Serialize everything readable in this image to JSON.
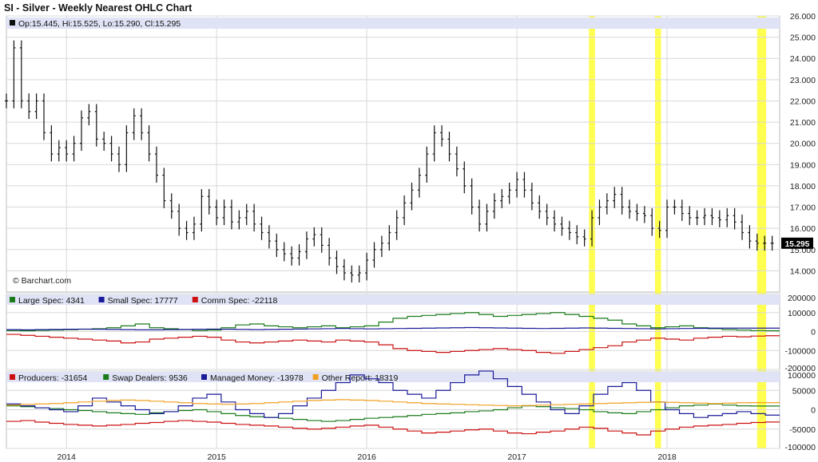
{
  "title": "SI - Silver - Weekly Nearest OHLC Chart",
  "copyright": "© Barchart.com",
  "colors": {
    "header_bg": "#dfe3f5",
    "grid": "#d8d8d8",
    "highlight": "#ffff33",
    "bar": "#111111",
    "large_spec": "#1a7a1a",
    "small_spec": "#1a1a99",
    "comm_spec": "#cc1111",
    "producers": "#cc1111",
    "swap_dealers": "#1a7a1a",
    "managed_money": "#1a1a99",
    "other_report": "#f0a020"
  },
  "chart_data": [
    {
      "type": "ohlc",
      "title": "SI - Silver - Weekly Nearest OHLC Chart",
      "legend": "Op:15.445, Hi:15.525, Lo:15.290, Cl:15.295",
      "last_price_label": "15.295",
      "ylim": [
        13.0,
        26.0
      ],
      "y_ticks": [
        "26.000",
        "25.000",
        "24.000",
        "23.000",
        "22.000",
        "21.000",
        "20.000",
        "19.000",
        "18.000",
        "17.000",
        "16.000",
        "15.000",
        "14.000"
      ],
      "x_ticks": [
        "2014",
        "2015",
        "2016",
        "2017",
        "2018"
      ],
      "x_range": [
        2013.6,
        2018.75
      ],
      "highlight_periods": [
        [
          2017.48,
          2017.52
        ],
        [
          2017.92,
          2017.96
        ],
        [
          2018.6,
          2018.66
        ]
      ],
      "series": [
        {
          "name": "Close",
          "x": [
            2013.6,
            2013.65,
            2013.7,
            2013.75,
            2013.8,
            2013.85,
            2013.9,
            2013.95,
            2014.0,
            2014.05,
            2014.1,
            2014.15,
            2014.2,
            2014.25,
            2014.3,
            2014.35,
            2014.4,
            2014.45,
            2014.5,
            2014.55,
            2014.6,
            2014.65,
            2014.7,
            2014.75,
            2014.8,
            2014.85,
            2014.9,
            2014.95,
            2015.0,
            2015.05,
            2015.1,
            2015.15,
            2015.2,
            2015.25,
            2015.3,
            2015.35,
            2015.4,
            2015.45,
            2015.5,
            2015.55,
            2015.6,
            2015.65,
            2015.7,
            2015.75,
            2015.8,
            2015.85,
            2015.9,
            2015.95,
            2016.0,
            2016.05,
            2016.1,
            2016.15,
            2016.2,
            2016.25,
            2016.3,
            2016.35,
            2016.4,
            2016.45,
            2016.5,
            2016.55,
            2016.6,
            2016.65,
            2016.7,
            2016.75,
            2016.8,
            2016.85,
            2016.9,
            2016.95,
            2017.0,
            2017.05,
            2017.1,
            2017.15,
            2017.2,
            2017.25,
            2017.3,
            2017.35,
            2017.4,
            2017.45,
            2017.5,
            2017.55,
            2017.6,
            2017.65,
            2017.7,
            2017.75,
            2017.8,
            2017.85,
            2017.9,
            2017.95,
            2018.0,
            2018.05,
            2018.1,
            2018.15,
            2018.2,
            2018.25,
            2018.3,
            2018.35,
            2018.4,
            2018.45,
            2018.5,
            2018.55,
            2018.6,
            2018.65,
            2018.7
          ],
          "values": [
            22.0,
            24.5,
            22.0,
            21.5,
            22.0,
            20.5,
            19.5,
            19.8,
            19.5,
            20.0,
            21.2,
            21.5,
            20.2,
            20.0,
            19.5,
            19.0,
            20.5,
            21.3,
            20.5,
            19.5,
            18.5,
            17.3,
            16.8,
            16.0,
            15.8,
            16.2,
            17.5,
            17.0,
            16.5,
            17.0,
            16.3,
            16.5,
            16.8,
            16.2,
            15.8,
            15.4,
            15.0,
            14.8,
            14.6,
            14.9,
            15.5,
            15.7,
            15.2,
            14.6,
            14.2,
            13.9,
            13.8,
            13.9,
            14.5,
            15.0,
            15.3,
            15.8,
            16.5,
            17.2,
            17.8,
            18.5,
            19.5,
            20.5,
            20.2,
            19.5,
            18.8,
            18.0,
            17.0,
            16.2,
            16.8,
            17.3,
            17.5,
            17.8,
            18.3,
            17.8,
            17.2,
            16.8,
            16.5,
            16.2,
            16.0,
            15.8,
            15.6,
            15.5,
            16.5,
            17.0,
            17.3,
            17.6,
            17.0,
            16.8,
            16.7,
            16.6,
            16.0,
            15.9,
            17.0,
            17.0,
            16.7,
            16.5,
            16.5,
            16.6,
            16.5,
            16.4,
            16.6,
            16.3,
            15.8,
            15.4,
            15.3,
            15.3,
            15.3
          ]
        }
      ]
    },
    {
      "type": "step-line",
      "ylim": [
        -200000,
        200000
      ],
      "y_ticks": [
        "200000",
        "100000",
        "0",
        "-100000",
        "-200000"
      ],
      "legend": [
        {
          "label": "Large Spec: 4341",
          "color": "#1a7a1a"
        },
        {
          "label": "Small Spec: 17777",
          "color": "#1a1a99"
        },
        {
          "label": "Comm Spec: -22118",
          "color": "#cc1111"
        }
      ],
      "series": [
        {
          "name": "Large Spec",
          "color": "#1a7a1a",
          "values": [
            5000,
            4000,
            6000,
            8000,
            10000,
            12000,
            15000,
            20000,
            30000,
            40000,
            20000,
            15000,
            10000,
            5000,
            8000,
            20000,
            35000,
            40000,
            30000,
            25000,
            20000,
            25000,
            30000,
            20000,
            25000,
            30000,
            50000,
            70000,
            80000,
            85000,
            90000,
            95000,
            100000,
            90000,
            80000,
            85000,
            90000,
            95000,
            100000,
            90000,
            80000,
            70000,
            60000,
            40000,
            30000,
            20000,
            25000,
            30000,
            20000,
            15000,
            10000,
            8000,
            5000,
            4341
          ]
        },
        {
          "name": "Small Spec",
          "color": "#1a1a99",
          "values": [
            10000,
            9000,
            10000,
            11000,
            12000,
            13000,
            12000,
            11000,
            10000,
            9000,
            9000,
            10000,
            11000,
            12000,
            13000,
            12000,
            11000,
            10000,
            11000,
            12000,
            13000,
            14000,
            15000,
            16000,
            15000,
            14000,
            15000,
            16000,
            17000,
            18000,
            19000,
            20000,
            21000,
            20000,
            19000,
            18000,
            17000,
            16000,
            17000,
            18000,
            19000,
            18000,
            17000,
            16000,
            15000,
            14000,
            15000,
            16000,
            17000,
            18000,
            18000,
            17777,
            17777,
            17777
          ]
        },
        {
          "name": "Comm Spec",
          "color": "#cc1111",
          "values": [
            -15000,
            -20000,
            -25000,
            -30000,
            -35000,
            -40000,
            -45000,
            -50000,
            -60000,
            -55000,
            -40000,
            -35000,
            -30000,
            -25000,
            -30000,
            -45000,
            -55000,
            -60000,
            -55000,
            -50000,
            -45000,
            -50000,
            -55000,
            -45000,
            -50000,
            -55000,
            -70000,
            -90000,
            -100000,
            -105000,
            -110000,
            -105000,
            -100000,
            -95000,
            -90000,
            -95000,
            -100000,
            -110000,
            -115000,
            -105000,
            -95000,
            -85000,
            -75000,
            -55000,
            -45000,
            -35000,
            -40000,
            -45000,
            -35000,
            -30000,
            -25000,
            -28000,
            -24000,
            -22118
          ]
        }
      ]
    },
    {
      "type": "step-line",
      "ylim": [
        -100000,
        100000
      ],
      "y_ticks": [
        "100000",
        "50000",
        "0",
        "-50000",
        "-100000"
      ],
      "legend": [
        {
          "label": "Producers: -31654",
          "color": "#cc1111"
        },
        {
          "label": "Swap Dealers: 9536",
          "color": "#1a7a1a"
        },
        {
          "label": "Managed Money: -13978",
          "color": "#1a1a99"
        },
        {
          "label": "Other Report: 18319",
          "color": "#f0a020"
        }
      ],
      "series": [
        {
          "name": "Producers",
          "color": "#cc1111",
          "values": [
            -30000,
            -28000,
            -32000,
            -35000,
            -38000,
            -40000,
            -42000,
            -40000,
            -38000,
            -35000,
            -33000,
            -30000,
            -28000,
            -30000,
            -32000,
            -35000,
            -38000,
            -40000,
            -42000,
            -45000,
            -48000,
            -50000,
            -48000,
            -45000,
            -42000,
            -40000,
            -45000,
            -50000,
            -55000,
            -60000,
            -58000,
            -55000,
            -52000,
            -50000,
            -55000,
            -60000,
            -62000,
            -58000,
            -55000,
            -50000,
            -45000,
            -48000,
            -55000,
            -60000,
            -65000,
            -55000,
            -50000,
            -45000,
            -42000,
            -40000,
            -38000,
            -35000,
            -33000,
            -31654
          ]
        },
        {
          "name": "Swap Dealers",
          "color": "#1a7a1a",
          "values": [
            10000,
            8000,
            5000,
            3000,
            0,
            -2000,
            -5000,
            -8000,
            -10000,
            -12000,
            -8000,
            -5000,
            -2000,
            0,
            -5000,
            -10000,
            -15000,
            -18000,
            -20000,
            -22000,
            -25000,
            -28000,
            -30000,
            -28000,
            -25000,
            -22000,
            -20000,
            -18000,
            -15000,
            -12000,
            -10000,
            -8000,
            -5000,
            -3000,
            0,
            5000,
            10000,
            8000,
            5000,
            3000,
            0,
            -5000,
            -8000,
            -10000,
            -5000,
            0,
            5000,
            10000,
            12000,
            15000,
            12000,
            10000,
            9536,
            9536
          ]
        },
        {
          "name": "Managed Money",
          "color": "#1a1a99",
          "values": [
            15000,
            10000,
            5000,
            0,
            -5000,
            10000,
            30000,
            20000,
            10000,
            0,
            -10000,
            -5000,
            10000,
            30000,
            40000,
            20000,
            0,
            -10000,
            -20000,
            -10000,
            10000,
            30000,
            50000,
            70000,
            90000,
            80000,
            70000,
            50000,
            40000,
            30000,
            50000,
            70000,
            90000,
            100000,
            80000,
            60000,
            40000,
            20000,
            0,
            -10000,
            10000,
            40000,
            60000,
            70000,
            50000,
            20000,
            0,
            -10000,
            -20000,
            -15000,
            -10000,
            -5000,
            -10000,
            -13978
          ]
        },
        {
          "name": "Other Report",
          "color": "#f0a020",
          "values": [
            12000,
            14000,
            15000,
            16000,
            18000,
            20000,
            22000,
            24000,
            25000,
            24000,
            22000,
            20000,
            18000,
            16000,
            15000,
            14000,
            15000,
            16000,
            18000,
            20000,
            22000,
            24000,
            25000,
            26000,
            25000,
            24000,
            22000,
            20000,
            18000,
            16000,
            15000,
            14000,
            13000,
            12000,
            11000,
            10000,
            11000,
            12000,
            13000,
            14000,
            15000,
            16000,
            17000,
            18000,
            19000,
            20000,
            19000,
            18000,
            17000,
            16000,
            17000,
            18000,
            18319,
            18319
          ]
        }
      ]
    }
  ]
}
